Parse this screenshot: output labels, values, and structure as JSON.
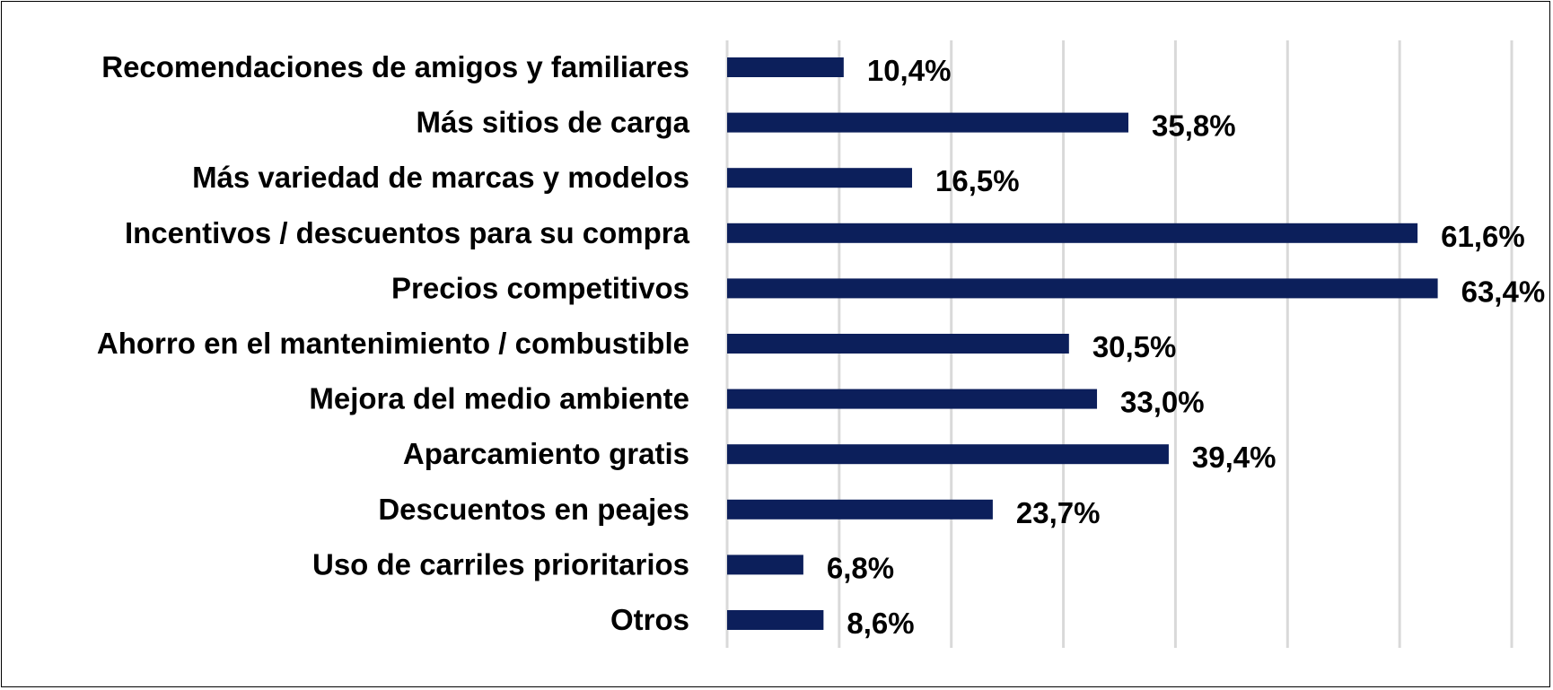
{
  "chart_data": {
    "type": "bar",
    "orientation": "horizontal",
    "title": "",
    "xlabel": "",
    "ylabel": "",
    "xlim": [
      0,
      70
    ],
    "grid": true,
    "bar_color": "#0c1f5b",
    "categories": [
      "Recomendaciones de amigos y familiares",
      "Más sitios de carga",
      "Más variedad de marcas y modelos",
      "Incentivos / descuentos para su compra",
      "Precios competitivos",
      "Ahorro en el mantenimiento / combustible",
      "Mejora del medio ambiente",
      "Aparcamiento gratis",
      "Descuentos en peajes",
      "Uso de carriles prioritarios",
      "Otros"
    ],
    "values": [
      10.4,
      35.8,
      16.5,
      61.6,
      63.4,
      30.5,
      33.0,
      39.4,
      23.7,
      6.8,
      8.6
    ],
    "value_labels": [
      "10,4%",
      "35,8%",
      "16,5%",
      "61,6%",
      "63,4%",
      "30,5%",
      "33,0%",
      "39,4%",
      "23,7%",
      "6,8%",
      "8,6%"
    ]
  }
}
